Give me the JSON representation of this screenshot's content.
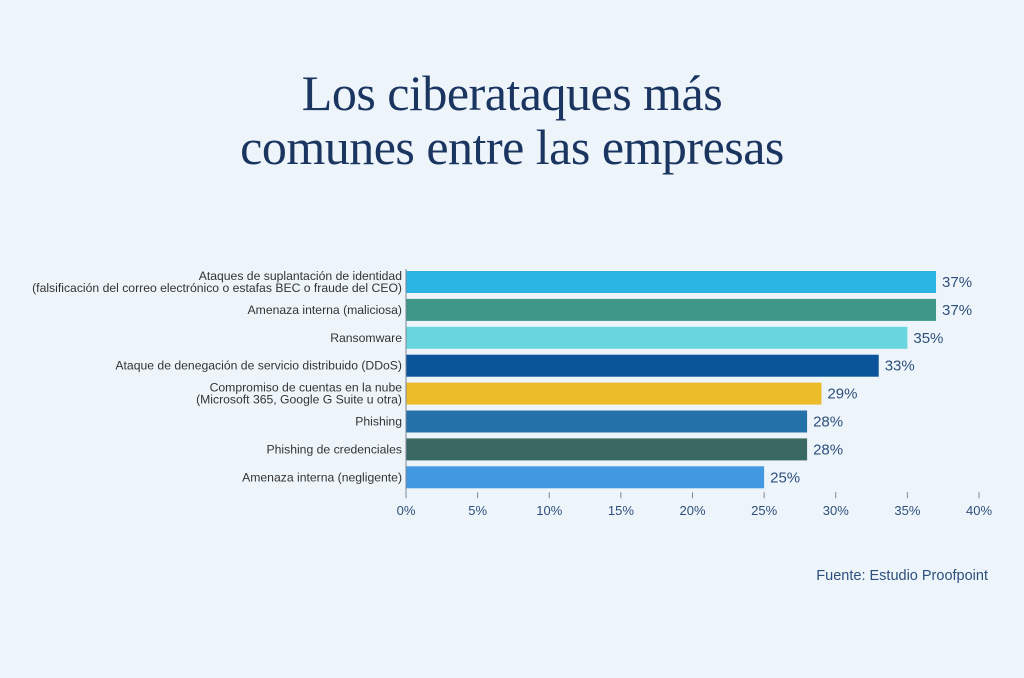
{
  "title_lines": [
    "Los ciberataques más",
    "comunes entre las empresas"
  ],
  "source": "Fuente: Estudio Proofpoint",
  "chart_data": {
    "type": "bar",
    "orientation": "horizontal",
    "categories": [
      [
        "Ataques de suplantación de identidad",
        "(falsificación del correo electrónico o estafas BEC o fraude del CEO)"
      ],
      [
        "Amenaza interna (maliciosa)"
      ],
      [
        "Ransomware"
      ],
      [
        "Ataque de denegación de servicio distribuido (DDoS)"
      ],
      [
        "Compromiso de cuentas en la nube",
        "(Microsoft 365, Google G Suite u otra)"
      ],
      [
        "Phishing"
      ],
      [
        "Phishing de credenciales"
      ],
      [
        "Amenaza interna (negligente)"
      ]
    ],
    "values": [
      37,
      37,
      35,
      33,
      29,
      28,
      28,
      25
    ],
    "value_labels": [
      "37%",
      "37%",
      "35%",
      "33%",
      "29%",
      "28%",
      "28%",
      "25%"
    ],
    "colors": [
      "#2ab5e3",
      "#3d9688",
      "#67d6dd",
      "#0a5499",
      "#ecbc2a",
      "#2572ab",
      "#3a6964",
      "#4399e1"
    ],
    "xlim": [
      0,
      40
    ],
    "xticks": [
      0,
      5,
      10,
      15,
      20,
      25,
      30,
      35,
      40
    ],
    "xtick_labels": [
      "0%",
      "5%",
      "10%",
      "15%",
      "20%",
      "25%",
      "30%",
      "35%",
      "40%"
    ],
    "grid": false
  }
}
